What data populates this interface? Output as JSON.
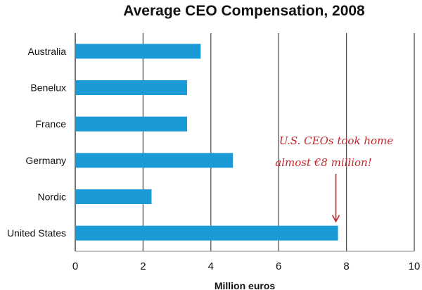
{
  "chart_data": {
    "type": "bar",
    "orientation": "horizontal",
    "title": "Average CEO Compensation, 2008",
    "categories": [
      "Australia",
      "Benelux",
      "France",
      "Germany",
      "Nordic",
      "United States"
    ],
    "values": [
      3.7,
      3.3,
      3.3,
      4.65,
      2.25,
      7.75
    ],
    "xlabel": "Million euros",
    "ylabel": "",
    "xlim": [
      0,
      10
    ],
    "xticks": [
      "0",
      "2",
      "4",
      "6",
      "8",
      "10"
    ],
    "grid": "vertical",
    "colors": {
      "bar": "#1a9ad6",
      "grid": "#555555",
      "annotation": "#c0272d"
    },
    "annotation": {
      "line1": "U.S. CEOs took home",
      "line2": "almost €8 million!",
      "points_to": "United States"
    }
  }
}
